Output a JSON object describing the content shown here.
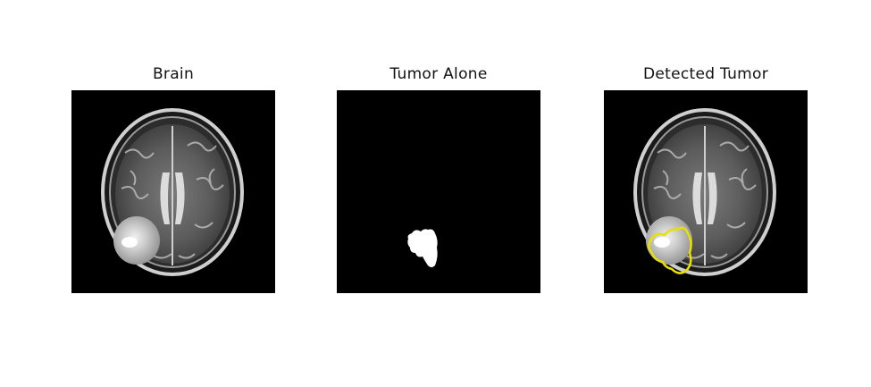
{
  "figure": {
    "panels": [
      {
        "title": "Brain"
      },
      {
        "title": "Tumor Alone"
      },
      {
        "title": "Detected Tumor"
      }
    ]
  },
  "colors": {
    "background": "#ffffff",
    "image_background": "#000000",
    "tumor_mask": "#ffffff",
    "detection_outline": "#e8e000"
  }
}
